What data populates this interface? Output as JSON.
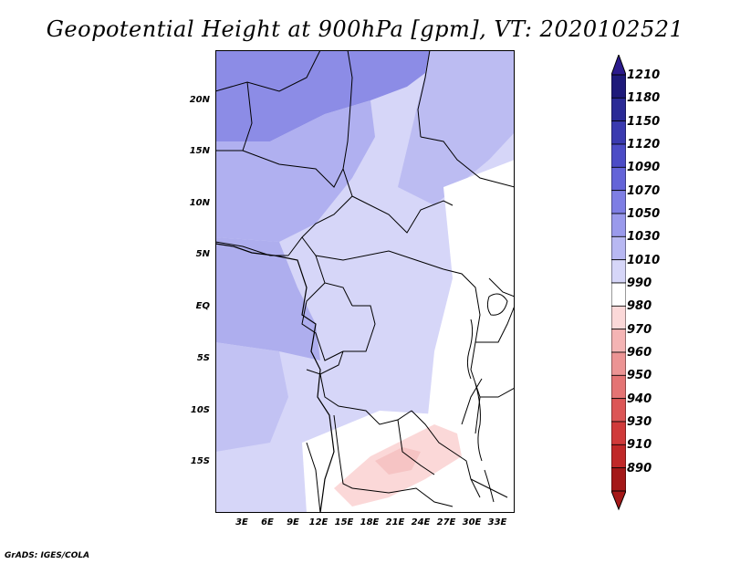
{
  "title": "Geopotential Height at 900hPa [gpm], VT: 2020102521",
  "footer": "GrADS: IGES/COLA",
  "lat_labels": [
    "20N",
    "15N",
    "10N",
    "5N",
    "EQ",
    "5S",
    "10S",
    "15S"
  ],
  "lon_labels": [
    "3E",
    "6E",
    "9E",
    "12E",
    "15E",
    "18E",
    "21E",
    "24E",
    "27E",
    "30E",
    "33E"
  ],
  "colorbar": {
    "levels": [
      "1210",
      "1180",
      "1150",
      "1120",
      "1090",
      "1070",
      "1050",
      "1030",
      "1010",
      "990",
      "980",
      "970",
      "960",
      "950",
      "940",
      "930",
      "910",
      "890"
    ],
    "colors": [
      "#1e1a7a",
      "#2a2a96",
      "#3a3ab0",
      "#4c4cc6",
      "#6464d8",
      "#7e7ee4",
      "#9a9aec",
      "#b8b8f2",
      "#d6d6f8",
      "#ffffff",
      "#fbd8d8",
      "#f4b4b4",
      "#ec9494",
      "#e47474",
      "#dc5656",
      "#d03a3a",
      "#c02828",
      "#a41818"
    ],
    "top_color": "#2b1a8c",
    "bottom_color": "#a41818"
  }
}
